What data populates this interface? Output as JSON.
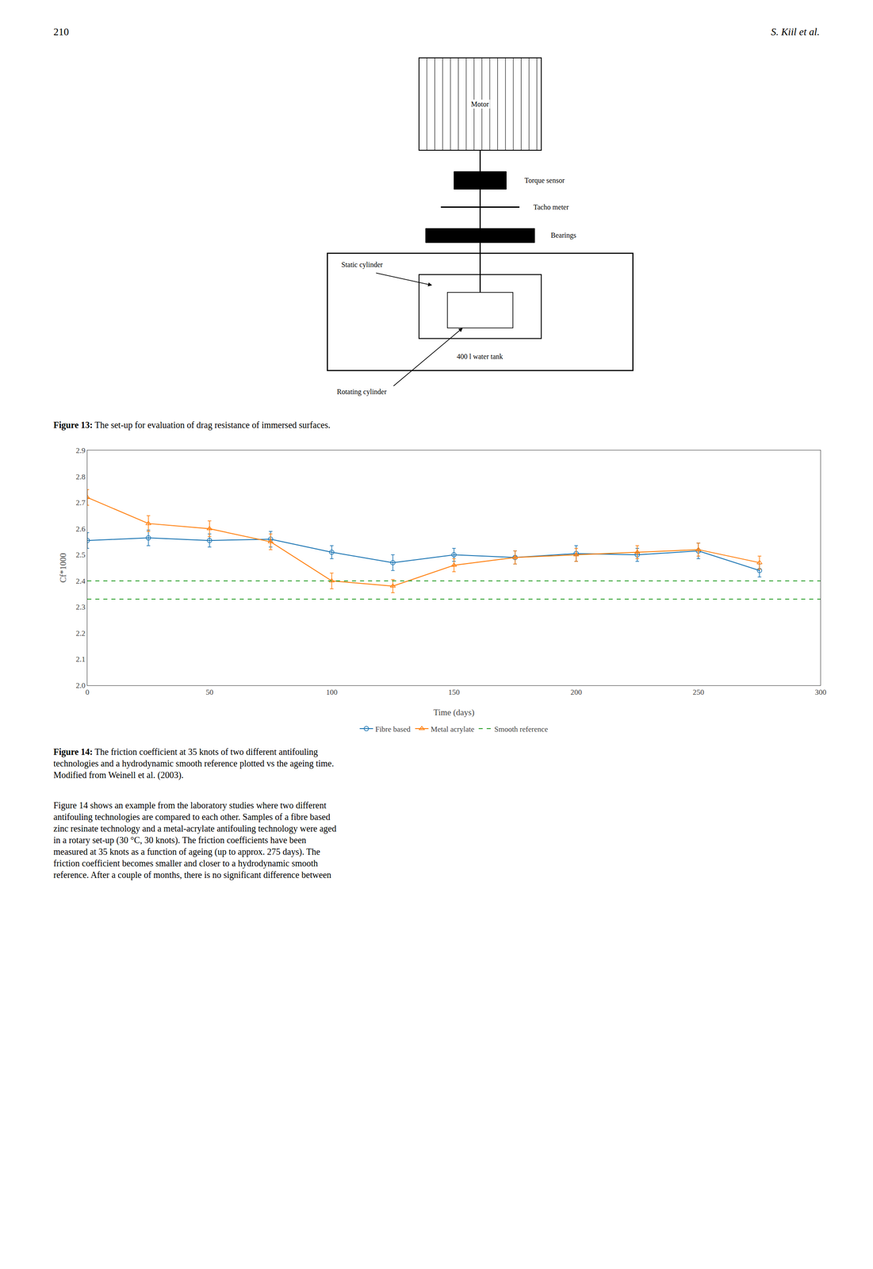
{
  "chart_data": {
    "type": "line",
    "xlabel": "Time (days)",
    "ylabel": "Cf*1000",
    "x": [
      0,
      25,
      50,
      75,
      100,
      125,
      150,
      175,
      200,
      225,
      250,
      275
    ],
    "series": [
      {
        "name": "Fibre based",
        "marker": "circle-open",
        "values": [
          2.555,
          2.565,
          2.555,
          2.56,
          2.51,
          2.47,
          2.5,
          2.49,
          2.505,
          2.5,
          2.515,
          2.44
        ],
        "error": [
          0.03,
          0.03,
          0.025,
          0.03,
          0.025,
          0.03,
          0.025,
          0.025,
          0.03,
          0.025,
          0.03,
          0.025
        ]
      },
      {
        "name": "Metal acrylate",
        "marker": "triangle-up-open",
        "values": [
          2.72,
          2.62,
          2.6,
          2.55,
          2.4,
          2.38,
          2.46,
          2.49,
          2.5,
          2.51,
          2.52,
          2.47
        ],
        "error": [
          0.03,
          0.03,
          0.03,
          0.03,
          0.03,
          0.025,
          0.025,
          0.025,
          0.025,
          0.025,
          0.025,
          0.025
        ]
      }
    ],
    "reference_lines": {
      "name": "Smooth reference",
      "values": [
        2.4,
        2.33
      ],
      "line_style": "dashed"
    },
    "xlim": [
      0,
      300
    ],
    "xticks": [
      0,
      50,
      100,
      150,
      200,
      250,
      300
    ],
    "ylim": [
      2.0,
      2.9
    ],
    "yticks": [
      {
        "value": 2.0,
        "label": "2.0"
      },
      2.1,
      2.2,
      2.3,
      2.4,
      2.5,
      2.6,
      2.7,
      2.8,
      2.9
    ],
    "grid": false,
    "legend": "bottom",
    "annotations": [
      "210",
      "S. Kiil et al.",
      "Motor",
      "Torque sensor",
      "Tacho meter",
      "Bearings",
      "Static cylinder",
      "Rotating cylinder",
      "400 l water tank",
      "Figure 13:",
      " The set-up for evaluation of drag resistance of immersed surfaces.",
      "Figure 14:",
      " The friction coefficient at 35 knots of two different antifouling\ntechnologies and a hydrodynamic smooth reference plotted vs the ageing time.\nModified from Weinell et al. (2003).",
      "Figure 14 shows an example from the laboratory studies where two different\nantifouling technologies are compared to each other. Samples of a fibre based\nzinc resinate technology and a metal-acrylate antifouling technology were aged\nin a rotary set-up (30 °C, 30 knots). The friction coefficients have been\nmeasured at 35 knots as a function of ageing (up to approx. 275 days). The\nfriction coefficient becomes smaller and closer to a hydrodynamic smooth\nreference. After a couple of months, there is no significant difference between"
    ]
  }
}
